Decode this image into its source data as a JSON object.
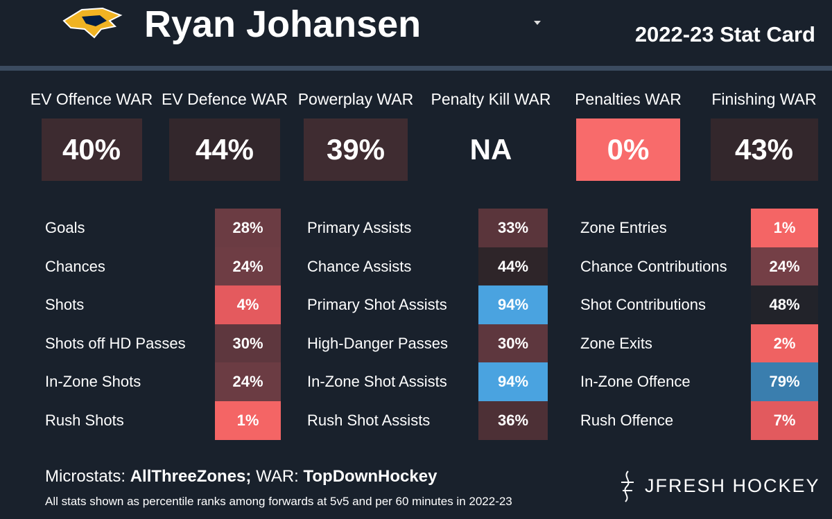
{
  "header": {
    "player": "Ryan Johansen",
    "subtitle": "2022-23 Stat Card"
  },
  "war": [
    {
      "label": "EV Offence WAR",
      "value": "40%",
      "color": "#3d2b30"
    },
    {
      "label": "EV Defence WAR",
      "value": "44%",
      "color": "#33272c"
    },
    {
      "label": "Powerplay WAR",
      "value": "39%",
      "color": "#3f2c31"
    },
    {
      "label": "Penalty Kill WAR",
      "value": "NA"
    },
    {
      "label": "Penalties WAR",
      "value": "0%",
      "color": "#f86b6b"
    },
    {
      "label": "Finishing WAR",
      "value": "43%",
      "color": "#33272c"
    }
  ],
  "groups": [
    {
      "rows": [
        {
          "label": "Goals",
          "value": "28%",
          "color": "#6b3c43"
        },
        {
          "label": "Chances",
          "value": "24%",
          "color": "#6e3d44"
        },
        {
          "label": "Shots",
          "value": "4%",
          "color": "#e45a5e"
        },
        {
          "label": "Shots off HD Passes",
          "value": "30%",
          "color": "#5e373e"
        },
        {
          "label": "In-Zone Shots",
          "value": "24%",
          "color": "#6b3c43"
        },
        {
          "label": "Rush Shots",
          "value": "1%",
          "color": "#f46565"
        }
      ]
    },
    {
      "rows": [
        {
          "label": "Primary Assists",
          "value": "33%",
          "color": "#5a353b"
        },
        {
          "label": "Chance Assists",
          "value": "44%",
          "color": "#2e2529"
        },
        {
          "label": "Primary Shot Assists",
          "value": "94%",
          "color": "#4aa3e0"
        },
        {
          "label": "High-Danger Passes",
          "value": "30%",
          "color": "#5e373e"
        },
        {
          "label": "In-Zone Shot Assists",
          "value": "94%",
          "color": "#4aa3e0"
        },
        {
          "label": "Rush Shot Assists",
          "value": "36%",
          "color": "#4d3036"
        }
      ]
    },
    {
      "rows": [
        {
          "label": "Zone Entries",
          "value": "1%",
          "color": "#f46565"
        },
        {
          "label": "Chance Contributions",
          "value": "24%",
          "color": "#743f46"
        },
        {
          "label": "Shot Contributions",
          "value": "48%",
          "color": "#22232a"
        },
        {
          "label": "Zone Exits",
          "value": "2%",
          "color": "#ef6262"
        },
        {
          "label": "In-Zone Offence",
          "value": "79%",
          "color": "#3a7eae"
        },
        {
          "label": "Rush Offence",
          "value": "7%",
          "color": "#e25a5e"
        }
      ]
    }
  ],
  "footer": {
    "micro_label": "Microstats:",
    "micro_source": "AllThreeZones;",
    "war_label": "WAR:",
    "war_source": "TopDownHockey",
    "note": "All stats shown as percentile ranks among forwards at 5v5 and per 60 minutes in 2022-23",
    "brand": "JFRESH HOCKEY"
  }
}
